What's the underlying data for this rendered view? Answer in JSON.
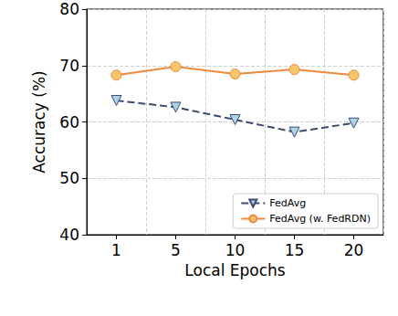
{
  "chart_data": {
    "type": "line",
    "x_label": "Local Epochs",
    "y_label": "Accuracy (%)",
    "categories": [
      "1",
      "5",
      "10",
      "15",
      "20"
    ],
    "series": [
      {
        "name": "FedAvg",
        "color": "#3d4a6e",
        "marker": "triangle_down",
        "line_style": "dashed",
        "values": [
          63.8,
          62.6,
          60.4,
          58.2,
          59.8
        ]
      },
      {
        "name": "FedAvg (w. FedRDN)",
        "color": "#f0883e",
        "marker": "circle",
        "line_style": "solid",
        "values": [
          68.3,
          69.8,
          68.5,
          69.3,
          68.3
        ]
      }
    ],
    "ylim": [
      40,
      80
    ],
    "yticks": [
      40,
      50,
      60,
      70,
      80
    ],
    "grid": true,
    "legend": "lower right"
  }
}
